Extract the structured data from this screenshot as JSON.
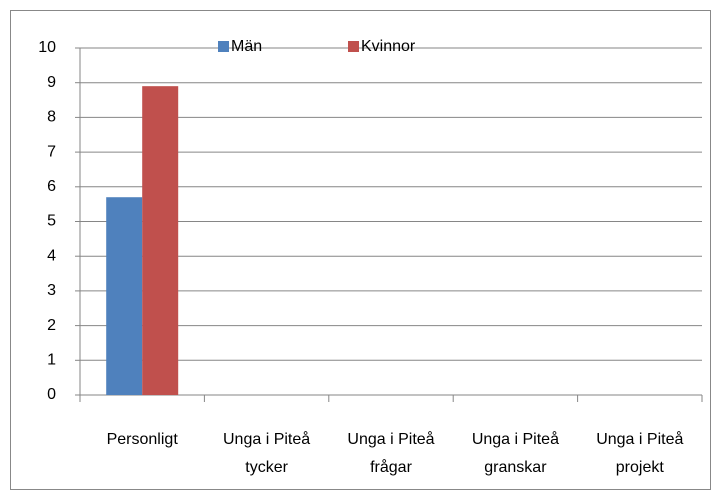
{
  "chart_data": {
    "type": "bar",
    "categories": [
      [
        "Personligt"
      ],
      [
        "Unga i Piteå",
        "tycker"
      ],
      [
        "Unga i Piteå",
        "frågar"
      ],
      [
        "Unga i Piteå",
        "granskar"
      ],
      [
        "Unga i Piteå",
        "projekt"
      ]
    ],
    "series": [
      {
        "name": "Män",
        "color": "#4f81bd",
        "values": [
          5.7,
          0,
          0,
          0,
          0
        ]
      },
      {
        "name": "Kvinnor",
        "color": "#c0504d",
        "values": [
          8.9,
          0,
          0,
          0,
          0
        ]
      }
    ],
    "ylim": [
      0,
      10
    ],
    "yticks": [
      0,
      1,
      2,
      3,
      4,
      5,
      6,
      7,
      8,
      9,
      10
    ],
    "grid": true,
    "legend": "top"
  }
}
